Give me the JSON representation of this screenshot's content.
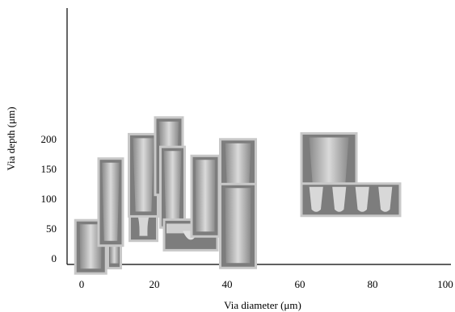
{
  "chart_data": {
    "type": "scatter",
    "title": "",
    "xlabel": "Via diameter (μm)",
    "ylabel": "Via depth (μm)",
    "xlim": [
      -2,
      101
    ],
    "ylim": [
      0,
      210
    ],
    "x_ticks": [
      "0",
      "20",
      "40",
      "60",
      "80",
      "100"
    ],
    "y_ticks": [
      "0",
      "50",
      "100",
      "150",
      "200"
    ],
    "grid": false,
    "legend": "none",
    "markers": "SEM cross-section micrograph thumbnails of filled vias",
    "points": [
      {
        "x": 2.5,
        "y": 20,
        "shape": "straight"
      },
      {
        "x": 9,
        "y": 14,
        "shape": "straight"
      },
      {
        "x": 8,
        "y": 95,
        "shape": "tapered"
      },
      {
        "x": 17,
        "y": 68,
        "shape": "bulb"
      },
      {
        "x": 17,
        "y": 140,
        "shape": "tapered"
      },
      {
        "x": 24,
        "y": 172,
        "shape": "tapered"
      },
      {
        "x": 25,
        "y": 120,
        "shape": "tapered"
      },
      {
        "x": 30,
        "y": 40,
        "shape": "shallow"
      },
      {
        "x": 34,
        "y": 105,
        "shape": "straight"
      },
      {
        "x": 43,
        "y": 130,
        "shape": "tapered"
      },
      {
        "x": 43,
        "y": 55,
        "shape": "straight"
      },
      {
        "x": 68,
        "y": 148,
        "shape": "tapered"
      },
      {
        "x": 74,
        "y": 99,
        "shape": "array"
      }
    ]
  }
}
